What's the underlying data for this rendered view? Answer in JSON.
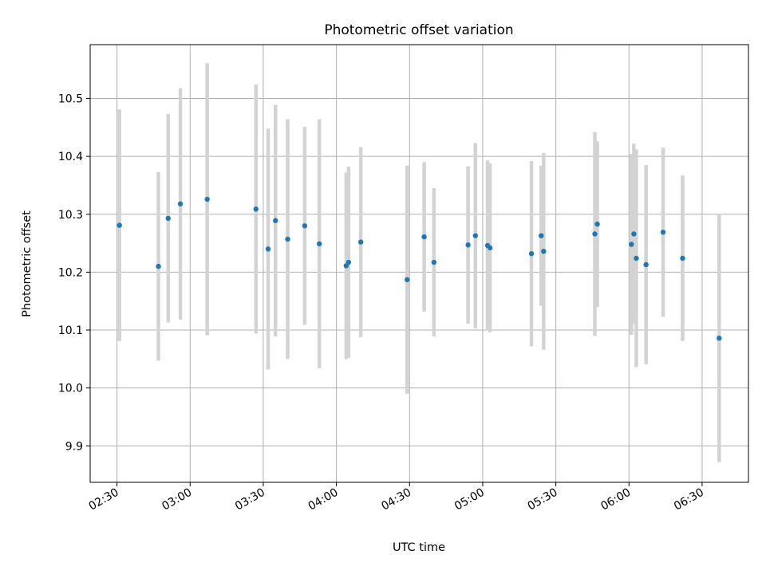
{
  "chart_data": {
    "type": "scatter",
    "title": "Photometric offset variation",
    "xlabel": "UTC time",
    "ylabel": "Photometric offset",
    "x_tick_labels": [
      "02:30",
      "03:00",
      "03:30",
      "04:00",
      "04:30",
      "05:00",
      "05:30",
      "06:00",
      "06:30"
    ],
    "y_tick_labels": [
      "9.9",
      "10.0",
      "10.1",
      "10.2",
      "10.3",
      "10.4",
      "10.5"
    ],
    "y_ticks": [
      9.9,
      10.0,
      10.1,
      10.2,
      10.3,
      10.4,
      10.5
    ],
    "xlim": [
      "02:19",
      "06:49"
    ],
    "ylim": [
      9.837,
      10.593
    ],
    "grid": true,
    "marker_color": "#1f77b4",
    "errorbar_color": "#d3d3d3",
    "points": [
      {
        "x": "02:31",
        "y": 10.281,
        "err": 0.2
      },
      {
        "x": "02:47",
        "y": 10.21,
        "err": 0.163
      },
      {
        "x": "02:51",
        "y": 10.293,
        "err": 0.18
      },
      {
        "x": "02:56",
        "y": 10.318,
        "err": 0.2
      },
      {
        "x": "03:07",
        "y": 10.326,
        "err": 0.235
      },
      {
        "x": "03:27",
        "y": 10.309,
        "err": 0.215
      },
      {
        "x": "03:32",
        "y": 10.24,
        "err": 0.208
      },
      {
        "x": "03:35",
        "y": 10.289,
        "err": 0.2
      },
      {
        "x": "03:40",
        "y": 10.257,
        "err": 0.207
      },
      {
        "x": "03:47",
        "y": 10.28,
        "err": 0.171
      },
      {
        "x": "03:53",
        "y": 10.249,
        "err": 0.215
      },
      {
        "x": "04:04",
        "y": 10.211,
        "err": 0.161
      },
      {
        "x": "04:05",
        "y": 10.217,
        "err": 0.165
      },
      {
        "x": "04:10",
        "y": 10.252,
        "err": 0.164
      },
      {
        "x": "04:29",
        "y": 10.187,
        "err": 0.197
      },
      {
        "x": "04:36",
        "y": 10.261,
        "err": 0.129
      },
      {
        "x": "04:40",
        "y": 10.217,
        "err": 0.128
      },
      {
        "x": "04:54",
        "y": 10.247,
        "err": 0.136
      },
      {
        "x": "04:57",
        "y": 10.263,
        "err": 0.16
      },
      {
        "x": "05:02",
        "y": 10.246,
        "err": 0.147
      },
      {
        "x": "05:03",
        "y": 10.242,
        "err": 0.146
      },
      {
        "x": "05:20",
        "y": 10.232,
        "err": 0.16
      },
      {
        "x": "05:24",
        "y": 10.263,
        "err": 0.121
      },
      {
        "x": "05:25",
        "y": 10.236,
        "err": 0.17
      },
      {
        "x": "05:46",
        "y": 10.266,
        "err": 0.176
      },
      {
        "x": "05:47",
        "y": 10.283,
        "err": 0.143
      },
      {
        "x": "06:01",
        "y": 10.248,
        "err": 0.156
      },
      {
        "x": "06:02",
        "y": 10.266,
        "err": 0.156
      },
      {
        "x": "06:03",
        "y": 10.224,
        "err": 0.188
      },
      {
        "x": "06:07",
        "y": 10.213,
        "err": 0.172
      },
      {
        "x": "06:14",
        "y": 10.269,
        "err": 0.146
      },
      {
        "x": "06:22",
        "y": 10.224,
        "err": 0.143
      },
      {
        "x": "06:37",
        "y": 10.086,
        "err": 0.214
      }
    ]
  }
}
